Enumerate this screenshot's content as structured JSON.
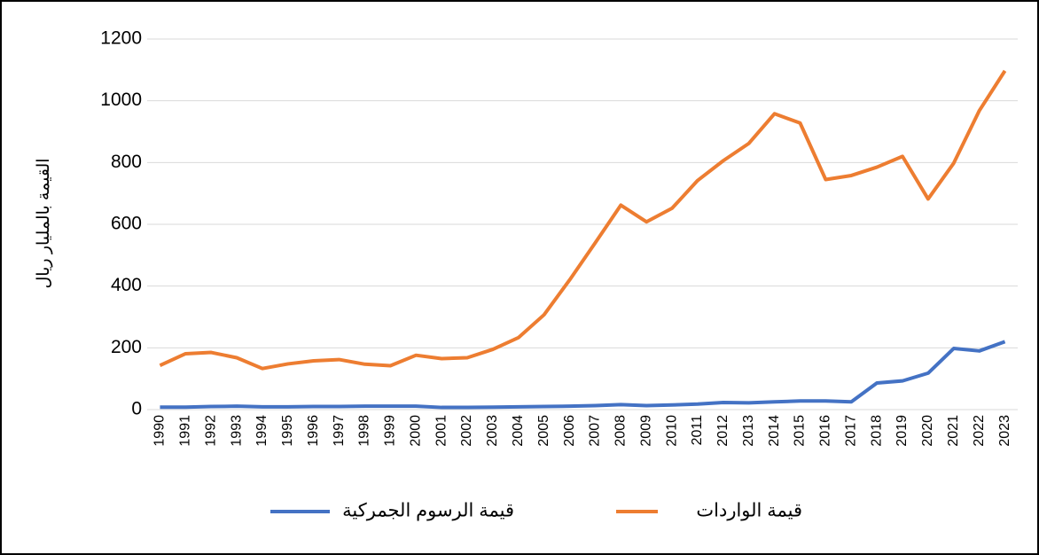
{
  "chart_data": {
    "type": "line",
    "y_label": "القيمة بالمليار ريال",
    "categories": [
      "1990",
      "1991",
      "1992",
      "1993",
      "1994",
      "1995",
      "1996",
      "1997",
      "1998",
      "1999",
      "2000",
      "2001",
      "2002",
      "2003",
      "2004",
      "2005",
      "2006",
      "2007",
      "2008",
      "2009",
      "2010",
      "2011",
      "2012",
      "2013",
      "2014",
      "2015",
      "2016",
      "2017",
      "2018",
      "2019",
      "2020",
      "2021",
      "2022",
      "2023"
    ],
    "series": [
      {
        "name": "قيمة الواردات",
        "color": "#ed7d31",
        "values": [
          143,
          181,
          185,
          168,
          133,
          148,
          158,
          162,
          147,
          142,
          176,
          165,
          168,
          195,
          233,
          307,
          420,
          540,
          662,
          608,
          652,
          742,
          806,
          862,
          958,
          928,
          745,
          758,
          785,
          820,
          682,
          798,
          968,
          1097
        ]
      },
      {
        "name": "قيمة الرسوم الجمركية",
        "color": "#4472c4",
        "values": [
          8,
          8,
          10,
          11,
          9,
          9,
          10,
          10,
          11,
          11,
          11,
          7,
          7,
          8,
          9,
          10,
          11,
          13,
          16,
          13,
          15,
          18,
          23,
          22,
          25,
          28,
          28,
          25,
          86,
          93,
          118,
          198,
          190,
          220
        ]
      }
    ],
    "ylim": [
      0,
      1200
    ],
    "yticks": [
      0,
      200,
      400,
      600,
      800,
      1000,
      1200
    ],
    "grid": true
  }
}
